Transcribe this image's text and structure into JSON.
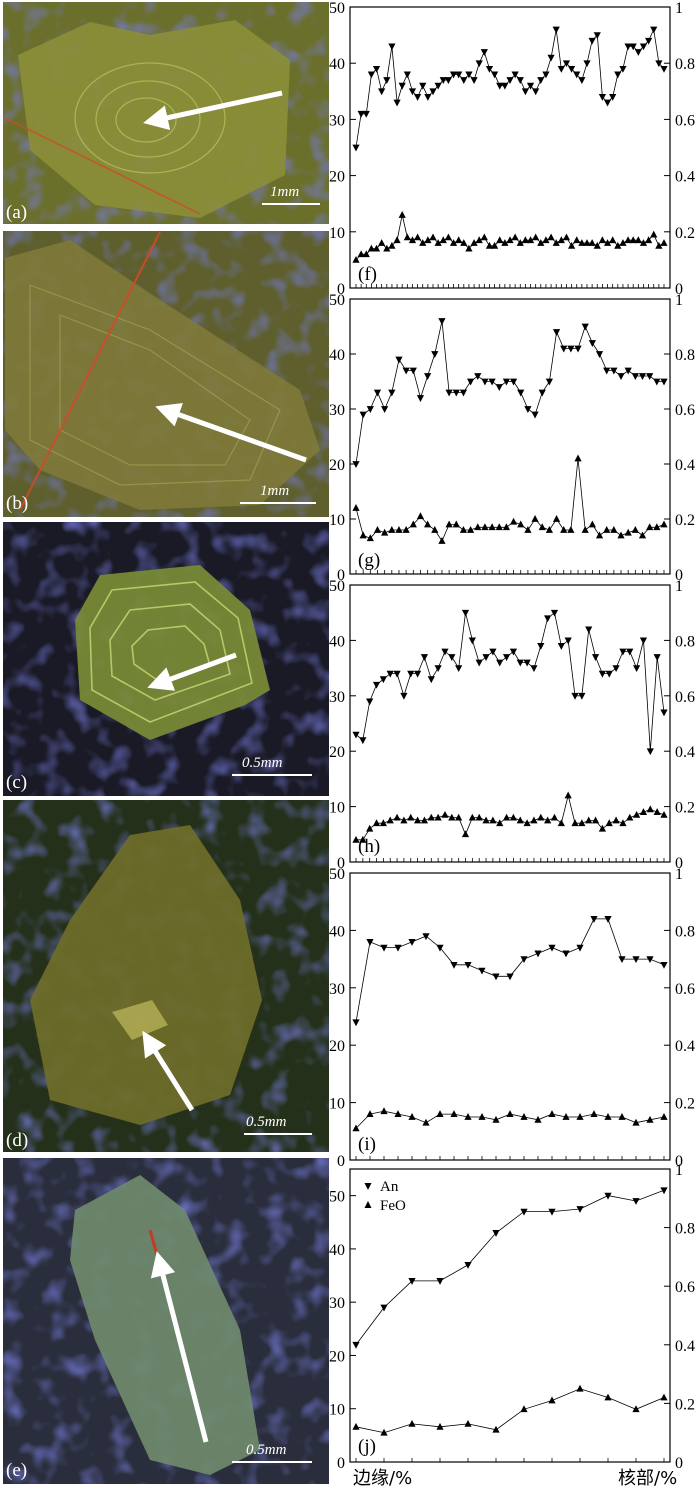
{
  "images": [
    {
      "label": "(a)",
      "scale": "1mm",
      "bg": "#6b6f2c",
      "crystal": "#8b8e38"
    },
    {
      "label": "(b)",
      "scale": "1mm",
      "bg": "#5e5f2d",
      "crystal": "#7f7a39"
    },
    {
      "label": "(c)",
      "scale": "0.5mm",
      "bg": "#1a1a26",
      "crystal": "#7a8c36"
    },
    {
      "label": "(d)",
      "scale": "0.5mm",
      "bg": "#243019",
      "crystal": "#6f6e29"
    },
    {
      "label": "(e)",
      "scale": "0.5mm",
      "bg": "#2a2e3c",
      "crystal": "#6f8a6c"
    }
  ],
  "x_axis_left": "边缘/%",
  "x_axis_right": "核部/%",
  "legend": {
    "an": "An",
    "feo": "FeO"
  },
  "chart_data": [
    {
      "type": "line",
      "panel": "(f)",
      "ylim_left": [
        0,
        50
      ],
      "ylim_right": [
        0,
        1
      ],
      "yticks_left": [
        "0",
        "10",
        "20",
        "30",
        "40",
        "50"
      ],
      "yticks_right": [
        "0",
        "0.2",
        "0.4",
        "0.6",
        "0.8",
        "1"
      ],
      "an": [
        25,
        31,
        31,
        38,
        39,
        35,
        37,
        43,
        33,
        36,
        38,
        35,
        34,
        36,
        34,
        35,
        36,
        37,
        37,
        38,
        38,
        37,
        38,
        37,
        40,
        42,
        39,
        38,
        36,
        36,
        37,
        38,
        37,
        35,
        36,
        35,
        37,
        38,
        41,
        46,
        39,
        40,
        39,
        38,
        37,
        40,
        44,
        45,
        34,
        33,
        34,
        38,
        39,
        43,
        43,
        42,
        43,
        44,
        46,
        40,
        39
      ],
      "feo": [
        0.1,
        0.12,
        0.12,
        0.14,
        0.14,
        0.16,
        0.14,
        0.15,
        0.17,
        0.26,
        0.18,
        0.17,
        0.18,
        0.16,
        0.17,
        0.18,
        0.16,
        0.17,
        0.18,
        0.16,
        0.17,
        0.16,
        0.14,
        0.16,
        0.17,
        0.18,
        0.15,
        0.15,
        0.17,
        0.16,
        0.17,
        0.18,
        0.16,
        0.17,
        0.17,
        0.18,
        0.16,
        0.17,
        0.18,
        0.16,
        0.17,
        0.18,
        0.15,
        0.17,
        0.16,
        0.16,
        0.16,
        0.15,
        0.17,
        0.16,
        0.17,
        0.15,
        0.16,
        0.17,
        0.17,
        0.17,
        0.16,
        0.17,
        0.19,
        0.15,
        0.16
      ]
    },
    {
      "type": "line",
      "panel": "(g)",
      "ylim_left": [
        0,
        50
      ],
      "ylim_right": [
        0,
        1
      ],
      "yticks_left": [
        "0",
        "10",
        "20",
        "30",
        "40",
        "50"
      ],
      "yticks_right": [
        "0",
        "0.2",
        "0.4",
        "0.6",
        "0.8",
        "1"
      ],
      "an": [
        20,
        29,
        30,
        33,
        30,
        33,
        39,
        37,
        37,
        32,
        36,
        40,
        46,
        33,
        33,
        33,
        35,
        36,
        35,
        35,
        34,
        35,
        35,
        33,
        30,
        29,
        33,
        35,
        44,
        41,
        41,
        41,
        45,
        42,
        40,
        37,
        37,
        36,
        37,
        36,
        36,
        36,
        35,
        35
      ],
      "feo": [
        0.24,
        0.14,
        0.13,
        0.16,
        0.15,
        0.16,
        0.16,
        0.16,
        0.18,
        0.21,
        0.18,
        0.16,
        0.12,
        0.18,
        0.18,
        0.16,
        0.16,
        0.17,
        0.17,
        0.17,
        0.17,
        0.17,
        0.19,
        0.18,
        0.16,
        0.2,
        0.17,
        0.16,
        0.2,
        0.16,
        0.16,
        0.42,
        0.16,
        0.18,
        0.14,
        0.16,
        0.16,
        0.14,
        0.15,
        0.16,
        0.14,
        0.17,
        0.17,
        0.18
      ]
    },
    {
      "type": "line",
      "panel": "(h)",
      "ylim_left": [
        0,
        50
      ],
      "ylim_right": [
        0,
        1
      ],
      "yticks_left": [
        "0",
        "10",
        "20",
        "30",
        "40",
        "50"
      ],
      "yticks_right": [
        "0",
        "0.2",
        "0.4",
        "0.6",
        "0.8",
        "1"
      ],
      "an": [
        23,
        22,
        29,
        32,
        33,
        34,
        34,
        30,
        34,
        34,
        37,
        33,
        35,
        38,
        37,
        35,
        45,
        40,
        36,
        37,
        38,
        36,
        37,
        38,
        36,
        36,
        35,
        39,
        44,
        45,
        39,
        40,
        30,
        30,
        42,
        37,
        34,
        34,
        35,
        38,
        38,
        35,
        40,
        20,
        37,
        27
      ],
      "feo": [
        0.08,
        0.08,
        0.12,
        0.14,
        0.14,
        0.15,
        0.16,
        0.15,
        0.16,
        0.15,
        0.15,
        0.16,
        0.16,
        0.17,
        0.16,
        0.16,
        0.1,
        0.16,
        0.16,
        0.15,
        0.15,
        0.14,
        0.16,
        0.16,
        0.15,
        0.14,
        0.15,
        0.16,
        0.15,
        0.16,
        0.14,
        0.24,
        0.14,
        0.14,
        0.15,
        0.15,
        0.12,
        0.14,
        0.15,
        0.14,
        0.16,
        0.17,
        0.18,
        0.19,
        0.18,
        0.17
      ]
    },
    {
      "type": "line",
      "panel": "(i)",
      "ylim_left": [
        0,
        50
      ],
      "ylim_right": [
        0,
        1
      ],
      "yticks_left": [
        "0",
        "10",
        "20",
        "30",
        "40",
        "50"
      ],
      "yticks_right": [
        "0",
        "0.2",
        "0.4",
        "0.6",
        "0.8",
        "1"
      ],
      "an": [
        24,
        38,
        37,
        37,
        38,
        39,
        37,
        34,
        34,
        33,
        32,
        32,
        35,
        36,
        37,
        36,
        37,
        42,
        42,
        35,
        35,
        35,
        34
      ],
      "feo": [
        0.11,
        0.16,
        0.17,
        0.16,
        0.15,
        0.13,
        0.16,
        0.16,
        0.15,
        0.15,
        0.14,
        0.16,
        0.15,
        0.14,
        0.16,
        0.15,
        0.15,
        0.16,
        0.15,
        0.15,
        0.13,
        0.14,
        0.15
      ]
    },
    {
      "type": "line",
      "panel": "(j)",
      "ylim_left": [
        0,
        55
      ],
      "ylim_right": [
        0,
        1
      ],
      "yticks_left": [
        "0",
        "10",
        "20",
        "30",
        "40",
        "50"
      ],
      "yticks_right": [
        "0",
        "0.2",
        "0.4",
        "0.6",
        "0.8",
        "1"
      ],
      "an": [
        22,
        29,
        34,
        34,
        37,
        43,
        47,
        47,
        47.5,
        50,
        49,
        51
      ],
      "feo": [
        0.12,
        0.1,
        0.13,
        0.12,
        0.13,
        0.11,
        0.18,
        0.21,
        0.25,
        0.22,
        0.18,
        0.22
      ]
    }
  ]
}
